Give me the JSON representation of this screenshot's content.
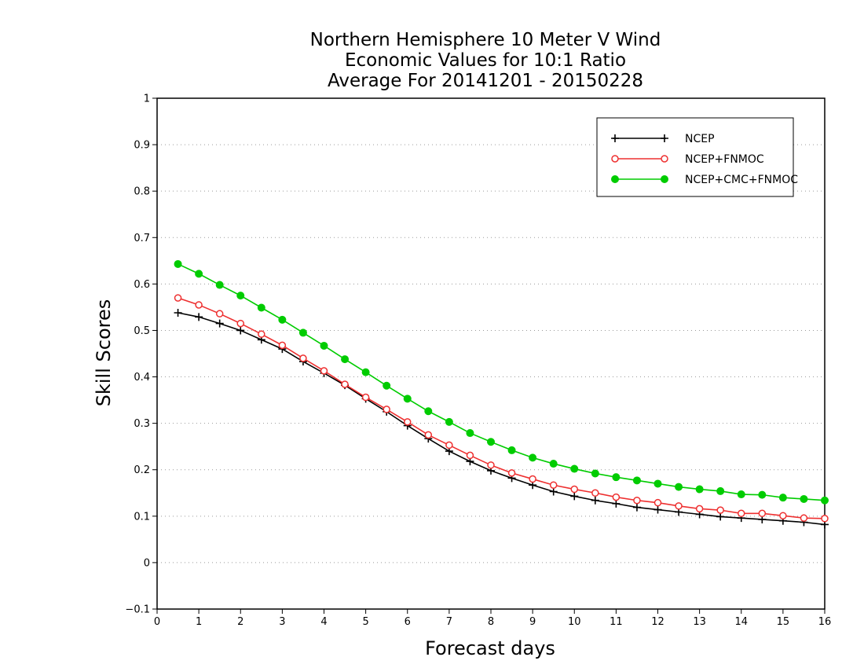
{
  "chart_data": {
    "type": "line",
    "title": [
      "Northern Hemisphere 10 Meter V Wind",
      "Economic Values for 10:1 Ratio",
      "Average For 20141201 - 20150228"
    ],
    "xlabel": "Forecast days",
    "ylabel": "Skill Scores",
    "xlim": [
      0,
      16
    ],
    "ylim": [
      -0.1,
      1
    ],
    "xticks": [
      "0",
      "1",
      "2",
      "3",
      "4",
      "5",
      "6",
      "7",
      "8",
      "9",
      "10",
      "11",
      "12",
      "13",
      "14",
      "15",
      "16"
    ],
    "yticks": [
      "-0.1",
      "0",
      "0.1",
      "0.2",
      "0.3",
      "0.4",
      "0.5",
      "0.6",
      "0.7",
      "0.8",
      "0.9",
      "1"
    ],
    "grid": "horizontal dotted",
    "legend_position": "top-right",
    "x": [
      0.5,
      1,
      1.5,
      2,
      2.5,
      3,
      3.5,
      4,
      4.5,
      5,
      5.5,
      6,
      6.5,
      7,
      7.5,
      8,
      8.5,
      9,
      9.5,
      10,
      10.5,
      11,
      11.5,
      12,
      12.5,
      13,
      13.5,
      14,
      14.5,
      15,
      15.5,
      16
    ],
    "series": [
      {
        "name": "NCEP",
        "color": "#000000",
        "marker": "plus",
        "values": [
          0.538,
          0.529,
          0.515,
          0.5,
          0.48,
          0.46,
          0.433,
          0.408,
          0.382,
          0.353,
          0.325,
          0.295,
          0.267,
          0.24,
          0.218,
          0.198,
          0.182,
          0.167,
          0.153,
          0.143,
          0.134,
          0.127,
          0.119,
          0.114,
          0.109,
          0.104,
          0.099,
          0.096,
          0.093,
          0.09,
          0.087,
          0.082
        ]
      },
      {
        "name": "NCEP+FNMOC",
        "color": "#ee3030",
        "marker": "open-circle",
        "values": [
          0.57,
          0.555,
          0.536,
          0.515,
          0.492,
          0.468,
          0.44,
          0.413,
          0.384,
          0.356,
          0.33,
          0.303,
          0.275,
          0.253,
          0.231,
          0.21,
          0.193,
          0.18,
          0.167,
          0.158,
          0.15,
          0.141,
          0.134,
          0.129,
          0.122,
          0.116,
          0.113,
          0.106,
          0.106,
          0.101,
          0.096,
          0.095
        ]
      },
      {
        "name": "NCEP+CMC+FNMOC",
        "color": "#00cc00",
        "marker": "filled-circle",
        "values": [
          0.643,
          0.622,
          0.598,
          0.575,
          0.549,
          0.523,
          0.495,
          0.467,
          0.438,
          0.41,
          0.381,
          0.353,
          0.326,
          0.303,
          0.279,
          0.26,
          0.242,
          0.226,
          0.213,
          0.202,
          0.192,
          0.184,
          0.177,
          0.17,
          0.163,
          0.158,
          0.154,
          0.147,
          0.146,
          0.14,
          0.137,
          0.134
        ]
      }
    ]
  }
}
